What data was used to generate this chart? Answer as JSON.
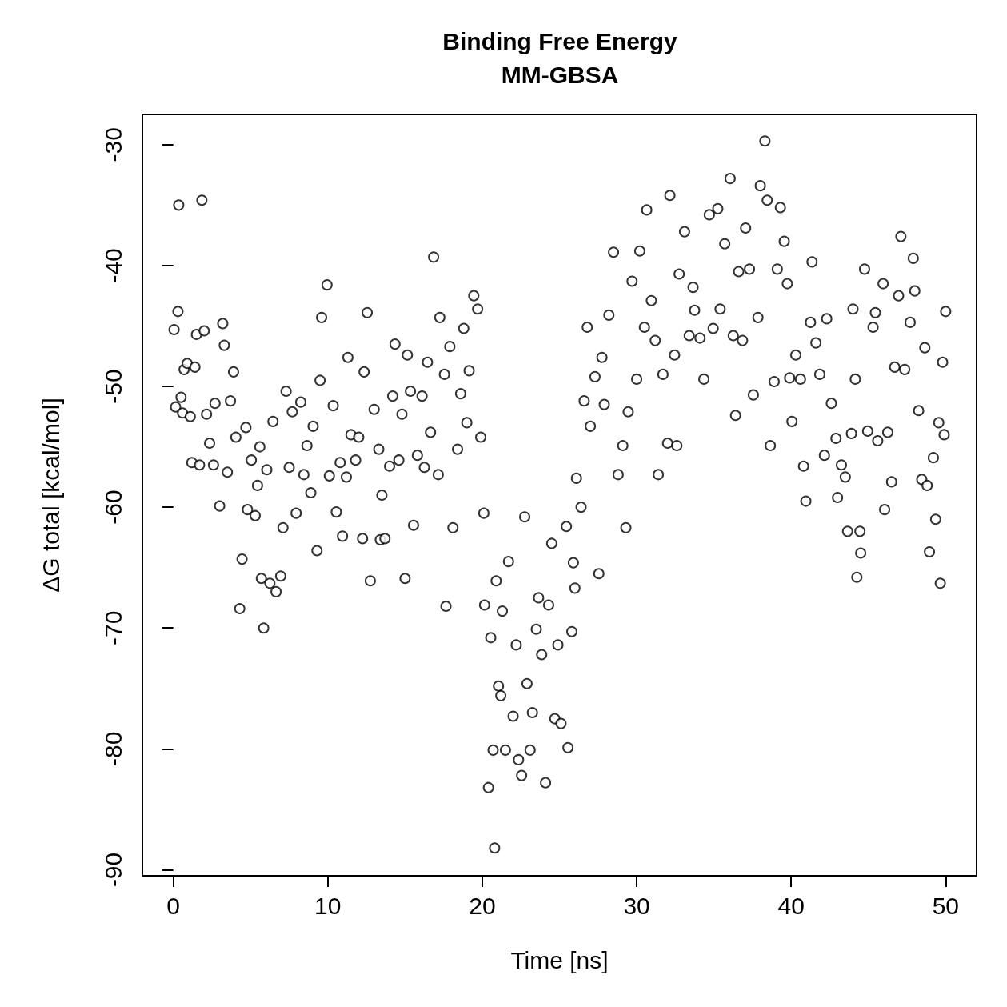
{
  "chart_data": {
    "type": "scatter",
    "title": "Binding Free Energy\nMM-GBSA",
    "xlabel": "Time [ns]",
    "ylabel": "ΔG total [kcal/mol]",
    "xlim": [
      -2,
      52
    ],
    "ylim": [
      -90.5,
      -27.5
    ],
    "xticks": [
      0,
      10,
      20,
      30,
      40,
      50
    ],
    "yticks": [
      -90,
      -80,
      -70,
      -60,
      -50,
      -40,
      -30
    ],
    "grid": false,
    "marker": "circle",
    "x": [
      0.05,
      0.15,
      0.3,
      0.35,
      0.5,
      0.6,
      0.7,
      0.9,
      1.1,
      1.2,
      1.4,
      1.5,
      1.7,
      1.85,
      2.0,
      2.15,
      2.35,
      2.6,
      2.7,
      3.0,
      3.2,
      3.3,
      3.5,
      3.7,
      3.9,
      4.05,
      4.3,
      4.45,
      4.7,
      4.8,
      5.05,
      5.3,
      5.45,
      5.6,
      5.7,
      5.85,
      6.05,
      6.25,
      6.45,
      6.65,
      6.95,
      7.1,
      7.3,
      7.5,
      7.7,
      7.95,
      8.25,
      8.45,
      8.65,
      8.9,
      9.05,
      9.3,
      9.5,
      9.6,
      9.95,
      10.1,
      10.35,
      10.55,
      10.8,
      10.95,
      11.2,
      11.3,
      11.5,
      11.8,
      12.0,
      12.25,
      12.35,
      12.55,
      12.75,
      13.0,
      13.3,
      13.4,
      13.5,
      13.7,
      14.0,
      14.2,
      14.35,
      14.6,
      14.8,
      15.0,
      15.15,
      15.35,
      15.55,
      15.8,
      16.1,
      16.25,
      16.45,
      16.65,
      16.85,
      17.15,
      17.25,
      17.55,
      17.65,
      17.9,
      18.1,
      18.4,
      18.6,
      18.8,
      19.0,
      19.15,
      19.45,
      19.7,
      19.9,
      20.1,
      20.15,
      20.4,
      20.55,
      20.7,
      20.8,
      20.9,
      21.05,
      21.2,
      21.3,
      21.5,
      21.7,
      22.0,
      22.2,
      22.35,
      22.55,
      22.75,
      22.9,
      23.1,
      23.25,
      23.5,
      23.65,
      23.85,
      24.1,
      24.3,
      24.5,
      24.7,
      24.9,
      25.1,
      25.45,
      25.55,
      25.8,
      25.9,
      26.0,
      26.1,
      26.4,
      26.6,
      26.8,
      27.0,
      27.3,
      27.55,
      27.75,
      27.9,
      28.2,
      28.5,
      28.8,
      29.1,
      29.3,
      29.45,
      29.7,
      30.0,
      30.2,
      30.5,
      30.65,
      30.95,
      31.2,
      31.4,
      31.7,
      32.0,
      32.15,
      32.45,
      32.6,
      32.75,
      33.1,
      33.4,
      33.65,
      33.75,
      34.1,
      34.35,
      34.7,
      34.95,
      35.25,
      35.4,
      35.7,
      36.05,
      36.25,
      36.4,
      36.6,
      36.85,
      37.05,
      37.3,
      37.55,
      37.85,
      38.0,
      38.3,
      38.45,
      38.65,
      38.9,
      39.1,
      39.3,
      39.55,
      39.75,
      39.9,
      40.05,
      40.3,
      40.6,
      40.8,
      40.95,
      41.25,
      41.35,
      41.6,
      41.85,
      42.15,
      42.3,
      42.6,
      42.9,
      43.0,
      43.25,
      43.5,
      43.65,
      43.9,
      44.0,
      44.15,
      44.25,
      44.45,
      44.5,
      44.75,
      44.95,
      45.3,
      45.45,
      45.6,
      45.95,
      46.05,
      46.25,
      46.5,
      46.7,
      46.95,
      47.1,
      47.35,
      47.7,
      47.9,
      48.0,
      48.25,
      48.45,
      48.65,
      48.8,
      48.95,
      49.2,
      49.35,
      49.55,
      49.65,
      49.8,
      49.9,
      50.0
    ],
    "series": [
      {
        "color": "#000000",
        "values": [
          -45.3,
          -51.7,
          -43.8,
          -35.0,
          -50.9,
          -52.2,
          -48.6,
          -48.1,
          -52.5,
          -56.3,
          -48.4,
          -45.7,
          -56.5,
          -34.6,
          -45.4,
          -52.3,
          -54.7,
          -56.5,
          -51.4,
          -59.9,
          -44.8,
          -46.6,
          -57.1,
          -51.2,
          -48.8,
          -54.2,
          -68.4,
          -64.3,
          -53.4,
          -60.2,
          -56.1,
          -60.7,
          -58.2,
          -55.0,
          -65.9,
          -70.0,
          -56.9,
          -66.3,
          -52.9,
          -67.0,
          -65.7,
          -61.7,
          -50.4,
          -56.7,
          -52.1,
          -60.5,
          -51.3,
          -57.3,
          -54.9,
          -58.8,
          -53.3,
          -63.6,
          -49.5,
          -44.3,
          -41.6,
          -57.4,
          -51.6,
          -60.4,
          -56.3,
          -62.4,
          -57.5,
          -47.6,
          -54.0,
          -56.1,
          -54.2,
          -62.6,
          -48.8,
          -43.9,
          -66.1,
          -51.9,
          -55.2,
          -62.7,
          -59.0,
          -62.6,
          -56.6,
          -50.8,
          -46.5,
          -56.1,
          -52.3,
          -65.9,
          -47.4,
          -50.4,
          -61.5,
          -55.7,
          -50.8,
          -56.7,
          -48.0,
          -53.8,
          -39.3,
          -57.3,
          -44.3,
          -49.0,
          -68.2,
          -46.7,
          -61.7,
          -55.2,
          -50.6,
          -45.2,
          -53.0,
          -48.7,
          -42.5,
          -43.6,
          -54.2,
          -60.5,
          -68.1,
          -83.2,
          -70.8,
          -80.1,
          -88.2,
          -66.1,
          -74.8,
          -75.6,
          -68.6,
          -80.1,
          -64.5,
          -77.3,
          -71.4,
          -80.9,
          -82.2,
          -60.8,
          -74.6,
          -80.1,
          -77.0,
          -70.1,
          -67.5,
          -72.2,
          -82.8,
          -68.1,
          -63.0,
          -77.5,
          -71.4,
          -77.9,
          -61.6,
          -79.9,
          -70.3,
          -64.6,
          -66.7,
          -57.6,
          -60.0,
          -51.2,
          -45.1,
          -53.3,
          -49.2,
          -65.5,
          -47.6,
          -51.5,
          -44.1,
          -38.9,
          -57.3,
          -54.9,
          -61.7,
          -52.1,
          -41.3,
          -49.4,
          -38.8,
          -45.1,
          -35.4,
          -42.9,
          -46.2,
          -57.3,
          -49.0,
          -54.7,
          -34.2,
          -47.4,
          -54.9,
          -40.7,
          -37.2,
          -45.8,
          -41.8,
          -43.7,
          -46.0,
          -49.4,
          -35.8,
          -45.2,
          -35.3,
          -43.6,
          -38.2,
          -32.8,
          -45.8,
          -52.4,
          -40.5,
          -46.2,
          -36.9,
          -40.3,
          -50.7,
          -44.3,
          -33.4,
          -29.7,
          -34.6,
          -54.9,
          -49.6,
          -40.3,
          -35.2,
          -38.0,
          -41.5,
          -49.3,
          -52.9,
          -47.4,
          -49.4,
          -56.6,
          -59.5,
          -44.7,
          -39.7,
          -46.4,
          -49.0,
          -55.7,
          -44.4,
          -51.4,
          -54.3,
          -59.2,
          -56.5,
          -57.5,
          -62.0,
          -53.9,
          -43.6,
          -49.4,
          -65.8,
          -62.0,
          -63.8,
          -40.3,
          -53.7,
          -45.1,
          -43.9,
          -54.5,
          -41.5,
          -60.2,
          -53.8,
          -57.9,
          -48.4,
          -42.5,
          -37.6,
          -48.6,
          -44.7,
          -39.4,
          -42.1,
          -52.0,
          -57.7,
          -46.8,
          -58.2,
          -63.7,
          -55.9,
          -61.0,
          -53.0,
          -66.3,
          -48.0,
          -54.0,
          -43.8
        ]
      }
    ]
  }
}
